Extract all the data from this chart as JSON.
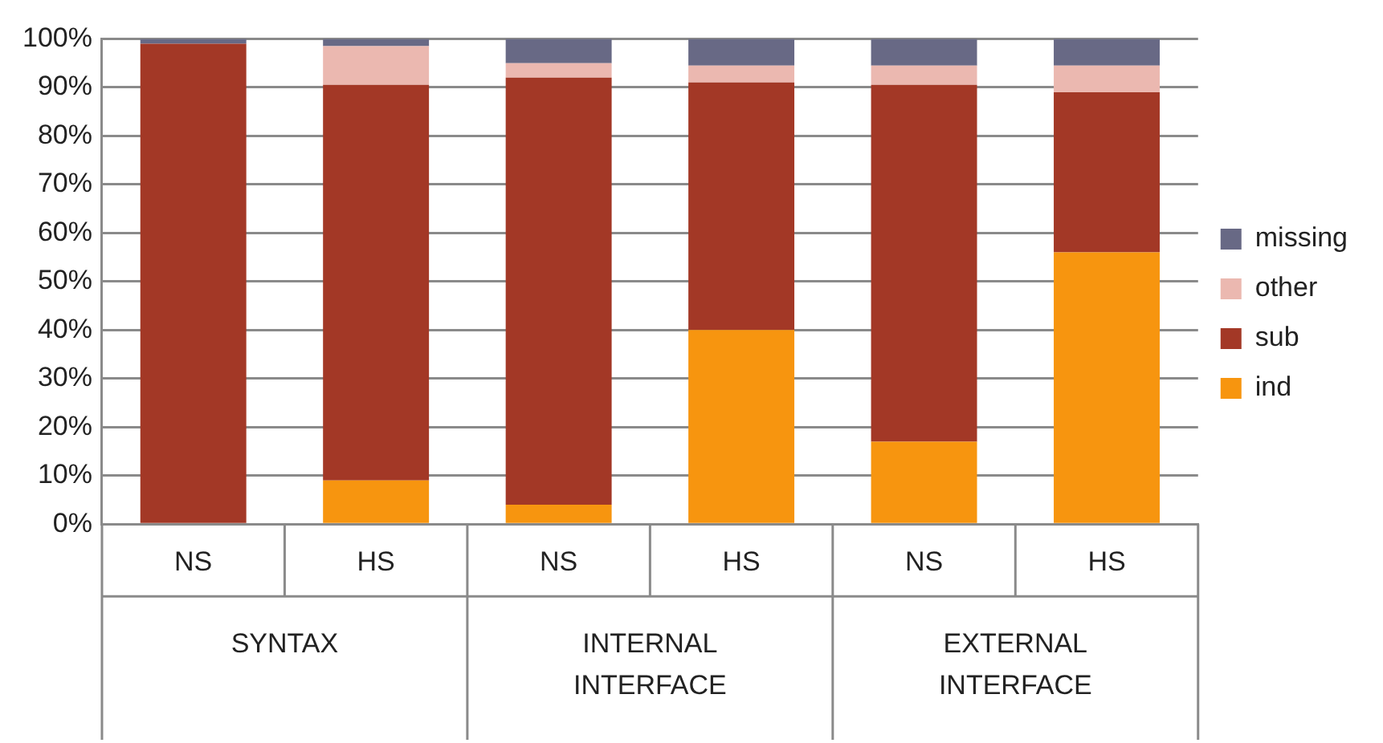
{
  "chart_data": {
    "type": "bar",
    "stacked": true,
    "categories": [
      "NS",
      "HS",
      "NS",
      "HS",
      "NS",
      "HS"
    ],
    "series": [
      {
        "name": "ind",
        "color": "#f7950f",
        "values": [
          0,
          9,
          4,
          40,
          17,
          56
        ]
      },
      {
        "name": "sub",
        "color": "#a33826",
        "values": [
          99,
          81.5,
          88,
          51,
          73.5,
          33
        ]
      },
      {
        "name": "other",
        "color": "#ebb8b0",
        "values": [
          0,
          8,
          3,
          3.5,
          4,
          5.5
        ]
      },
      {
        "name": "missing",
        "color": "#686985",
        "values": [
          1,
          1.5,
          5,
          5.5,
          5.5,
          5.5
        ]
      }
    ],
    "annotations": [
      "SYNTAX",
      "INTERNAL INTERFACE",
      "EXTERNAL INTERFACE"
    ],
    "ylim": [
      0,
      100
    ],
    "yticks": [
      {
        "value": 0,
        "label": "0%"
      },
      {
        "value": 10,
        "label": "10%"
      },
      {
        "value": 20,
        "label": "20%"
      },
      {
        "value": 30,
        "label": "30%"
      },
      {
        "value": 40,
        "label": "40%"
      },
      {
        "value": 50,
        "label": "50%"
      },
      {
        "value": 60,
        "label": "60%"
      },
      {
        "value": 70,
        "label": "70%"
      },
      {
        "value": 80,
        "label": "80%"
      },
      {
        "value": 90,
        "label": "90%"
      },
      {
        "value": 100,
        "label": "100%"
      }
    ],
    "grid": "y",
    "legend": "right"
  }
}
